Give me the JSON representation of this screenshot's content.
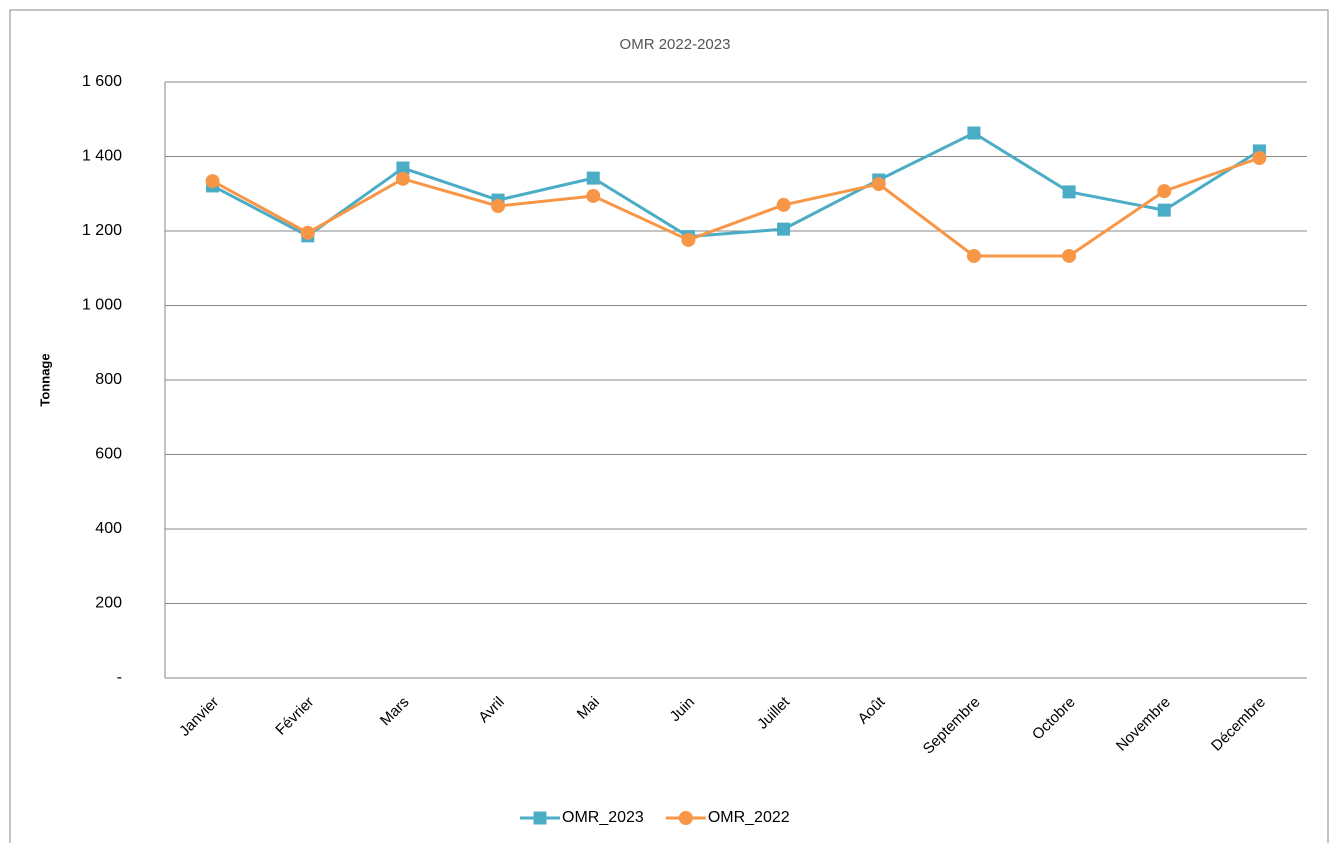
{
  "chart_data": {
    "type": "line",
    "title": "OMR 2022-2023",
    "y_label": "Tonnage",
    "categories": [
      "Janvier",
      "Février",
      "Mars",
      "Avril",
      "Mai",
      "Juin",
      "Juillet",
      "Août",
      "Septembre",
      "Octobre",
      "Novembre",
      "Décembre"
    ],
    "series": [
      {
        "name": "OMR_2023",
        "color": "#4bacc6",
        "marker": "square",
        "values": [
          1321,
          1187,
          1369,
          1283,
          1342,
          1185,
          1205,
          1337,
          1463,
          1305,
          1256,
          1415
        ]
      },
      {
        "name": "OMR_2022",
        "color": "#f79646",
        "marker": "circle",
        "values": [
          1334,
          1195,
          1340,
          1267,
          1294,
          1176,
          1270,
          1326,
          1133,
          1133,
          1307,
          1396
        ]
      }
    ],
    "ylim": [
      0,
      1600
    ],
    "yticks": [
      {
        "value": 0,
        "label": "-"
      },
      200,
      400,
      600,
      800,
      {
        "value": 1000,
        "label": "1 000"
      },
      {
        "value": 1200,
        "label": "1 200"
      },
      {
        "value": 1400,
        "label": "1 400"
      },
      {
        "value": 1600,
        "label": "1 600"
      }
    ],
    "grid": true,
    "legend": "bottom"
  }
}
